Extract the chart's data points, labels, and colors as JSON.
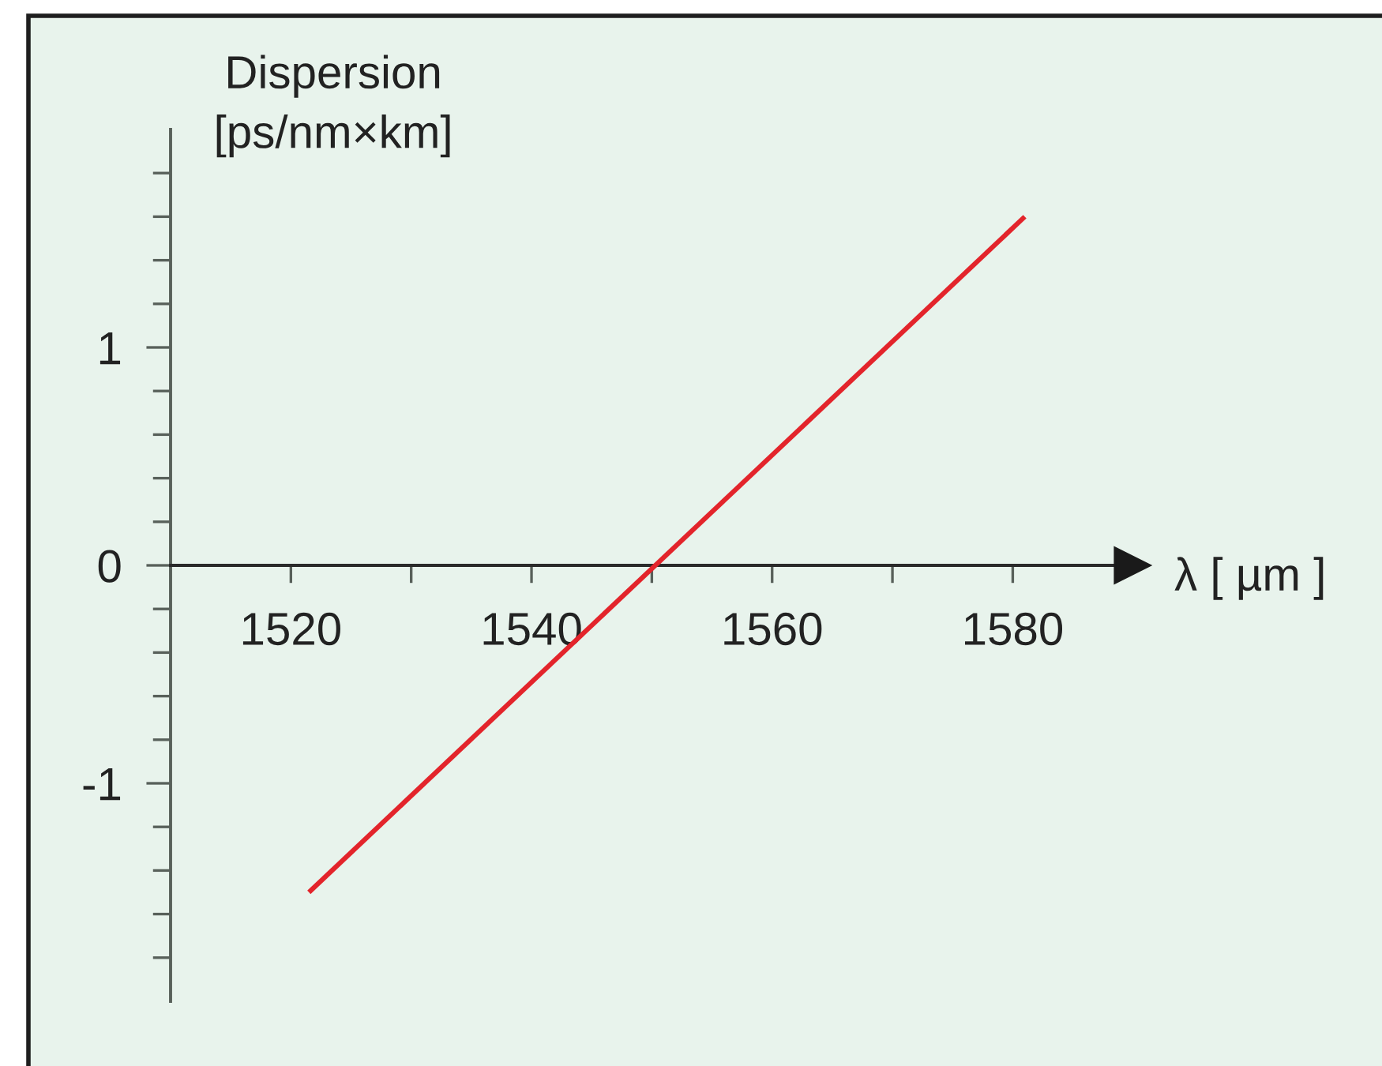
{
  "chart_data": {
    "type": "line",
    "xlabel": "λ [ µm ]",
    "ylabel": "Dispersion\n[ps/nm×km]",
    "x": [
      1521.5,
      1581
    ],
    "series": [
      {
        "color": "#e3242b",
        "values": [
          -1.5,
          1.6
        ]
      }
    ],
    "xlim": [
      1510,
      1591
    ],
    "ylim": [
      -2,
      2
    ],
    "xticks": [
      1520,
      {
        "value": 1530,
        "label": null
      },
      1540,
      {
        "value": 1550,
        "label": null
      },
      1560,
      {
        "value": 1570,
        "label": null
      },
      1580
    ],
    "yticks": [
      {
        "value": -1.8,
        "label": null
      },
      {
        "value": -1.6,
        "label": null
      },
      {
        "value": -1.4,
        "label": null
      },
      {
        "value": -1.2,
        "label": null
      },
      -1,
      {
        "value": -0.8,
        "label": null
      },
      {
        "value": -0.6,
        "label": null
      },
      {
        "value": -0.4,
        "label": null
      },
      {
        "value": -0.2,
        "label": null
      },
      0,
      {
        "value": 0.2,
        "label": null
      },
      {
        "value": 0.4,
        "label": null
      },
      {
        "value": 0.6,
        "label": null
      },
      {
        "value": 0.8,
        "label": null
      },
      1,
      {
        "value": 1.2,
        "label": null
      },
      {
        "value": 1.4,
        "label": null
      },
      {
        "value": 1.6,
        "label": null
      },
      {
        "value": 1.8,
        "label": null
      }
    ],
    "grid": false,
    "legend": false,
    "marker": "none",
    "line_style": "solid"
  }
}
